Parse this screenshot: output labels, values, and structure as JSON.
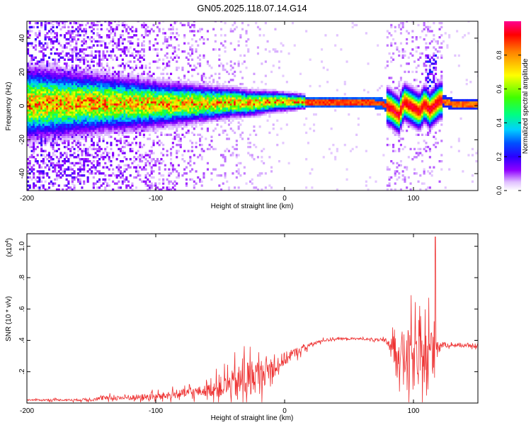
{
  "figure_title": "GN05.2025.118.07.14.G14",
  "chart_data": [
    {
      "type": "heatmap",
      "title": "GN05.2025.118.07.14.G14",
      "xlabel": "Height of straight line (km)",
      "ylabel": "Frequency (Hz)",
      "xlim": [
        -200,
        150
      ],
      "ylim": [
        -50,
        50
      ],
      "xticks": [
        -200,
        -100,
        0,
        100
      ],
      "yticks": [
        -40,
        -20,
        0,
        20,
        40
      ],
      "colorbar": {
        "label": "Normalized spectral amplitude",
        "range": [
          0,
          1
        ],
        "ticks": [
          0.0,
          0.2,
          0.4,
          0.6,
          0.8
        ],
        "colormap": [
          "#ffffff",
          "#d9b3ff",
          "#8a00ff",
          "#3b00ff",
          "#0000ff",
          "#00c8ff",
          "#00ff66",
          "#66ff00",
          "#ffff00",
          "#ff8000",
          "#ff0000",
          "#ff0080"
        ]
      },
      "ridge": {
        "x": [
          -200,
          -150,
          -100,
          -60,
          -40,
          -30,
          -20,
          -10,
          0,
          10,
          20,
          40,
          60,
          75,
          82,
          88,
          92,
          96,
          100,
          104,
          108,
          112,
          116,
          120,
          130,
          150
        ],
        "freq": [
          1,
          1,
          0.5,
          1,
          1.5,
          1,
          1.5,
          2,
          2,
          2,
          2,
          2,
          1.5,
          1,
          -2,
          -6,
          2,
          0,
          -2,
          -4,
          1,
          -3,
          0,
          3,
          0.5,
          0.5
        ]
      },
      "grid": false
    },
    {
      "type": "line",
      "xlabel": "Height of straight line (km)",
      "ylabel": "SNR (10 * v/v)",
      "y_scale_note": "(x10",
      "y_scale_exponent": "4",
      "xlim": [
        -200,
        150
      ],
      "ylim": [
        0,
        1.08
      ],
      "xticks": [
        -200,
        -100,
        0,
        100
      ],
      "yticks": [
        0.2,
        0.4,
        0.6,
        0.8,
        1.0
      ],
      "color": "#ee3333",
      "envelope": {
        "x": [
          -200,
          -160,
          -140,
          -120,
          -100,
          -80,
          -60,
          -50,
          -40,
          -30,
          -20,
          -10,
          0,
          10,
          20,
          30,
          40,
          60,
          75,
          80,
          85,
          90,
          95,
          100,
          105,
          110,
          115,
          120,
          130,
          150
        ],
        "base": [
          0.02,
          0.02,
          0.03,
          0.035,
          0.04,
          0.06,
          0.08,
          0.1,
          0.12,
          0.15,
          0.18,
          0.22,
          0.28,
          0.33,
          0.37,
          0.4,
          0.41,
          0.41,
          0.4,
          0.39,
          0.36,
          0.32,
          0.3,
          0.28,
          0.27,
          0.29,
          0.33,
          0.37,
          0.37,
          0.36
        ],
        "amp": [
          0.01,
          0.015,
          0.03,
          0.04,
          0.05,
          0.06,
          0.08,
          0.15,
          0.2,
          0.28,
          0.22,
          0.15,
          0.1,
          0.06,
          0.03,
          0.02,
          0.015,
          0.015,
          0.02,
          0.06,
          0.15,
          0.3,
          0.38,
          0.42,
          0.35,
          0.4,
          0.55,
          0.05,
          0.02,
          0.02
        ]
      },
      "peak": {
        "x": 117,
        "y": 1.06
      },
      "grid": false
    }
  ]
}
